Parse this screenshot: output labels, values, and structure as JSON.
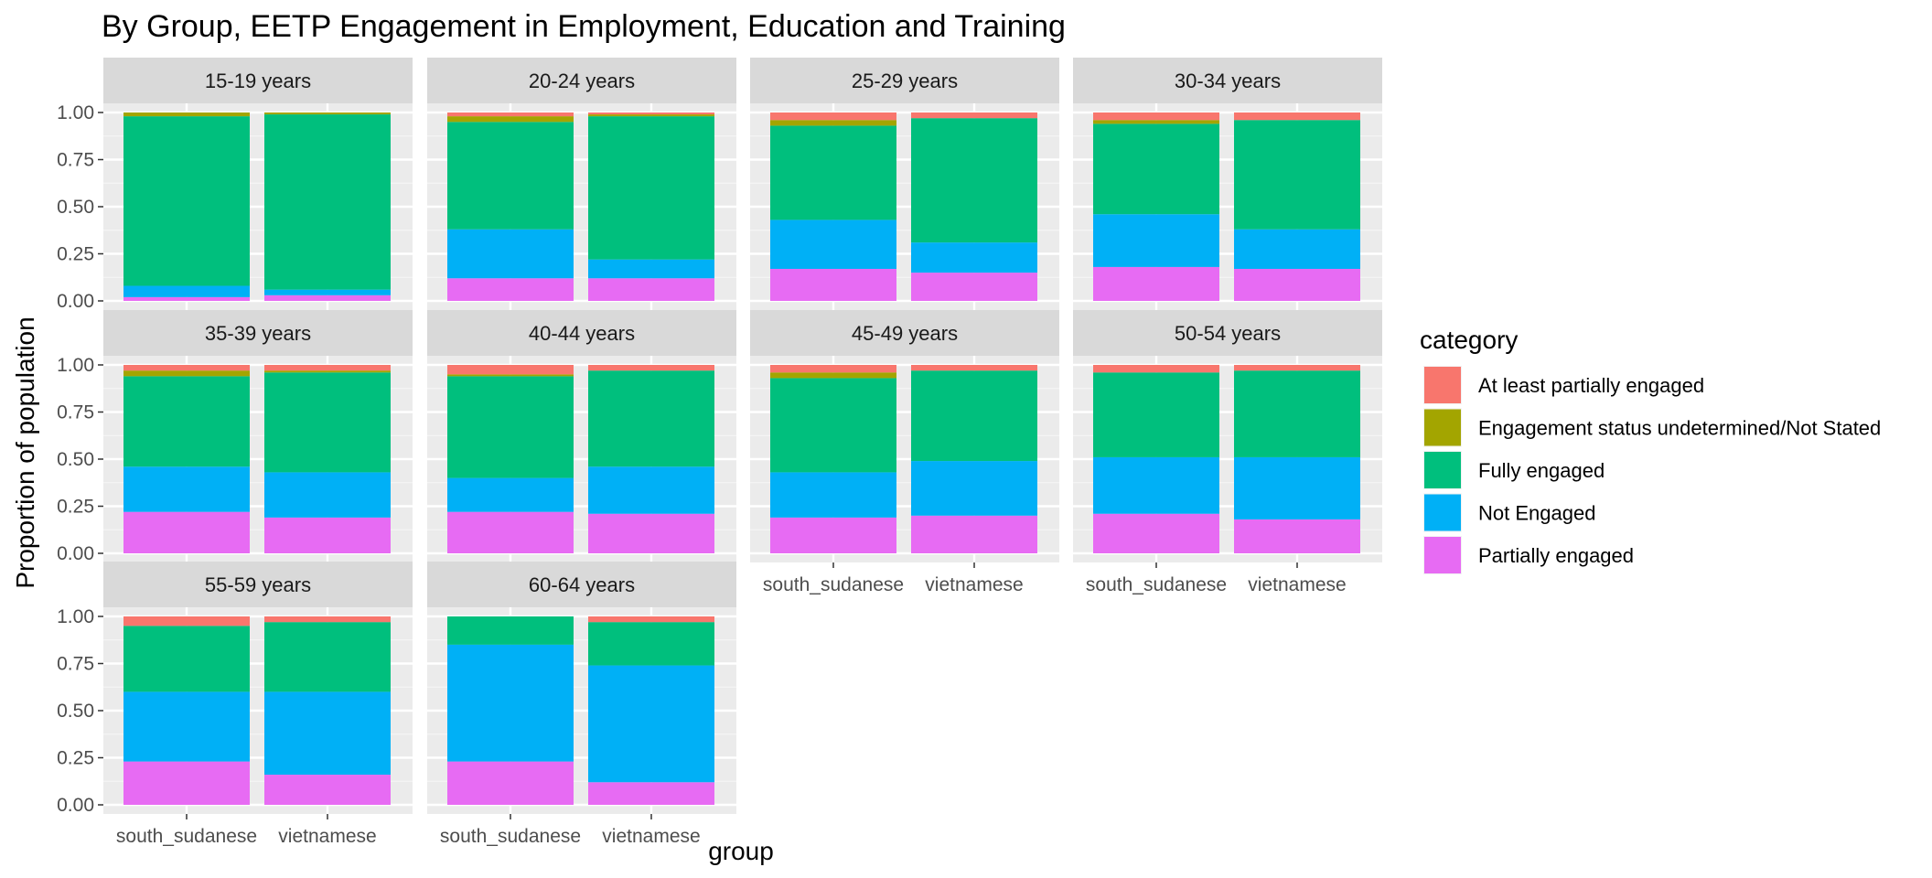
{
  "chart_data": {
    "type": "bar",
    "stacked": true,
    "title": "By Group,  EETP Engagement in Employment, Education and Training",
    "xlabel": "group",
    "ylabel": "Proportion of population",
    "ylim": [
      0,
      1
    ],
    "yticks": [
      "0.00",
      "0.25",
      "0.50",
      "0.75",
      "1.00"
    ],
    "ytick_values": [
      0,
      0.25,
      0.5,
      0.75,
      1.0
    ],
    "groups": [
      "south_sudanese",
      "vietnamese"
    ],
    "legend": {
      "title": "category",
      "placement": "right",
      "entries": [
        {
          "name": "At least partially engaged",
          "color": "#F8766D"
        },
        {
          "name": "Engagement status undetermined/Not Stated",
          "color": "#A3A500"
        },
        {
          "name": "Fully engaged",
          "color": "#00BF7D"
        },
        {
          "name": "Not Engaged",
          "color": "#00B0F6"
        },
        {
          "name": "Partially engaged",
          "color": "#E76BF3"
        }
      ]
    },
    "stack_order_bottom_to_top": [
      "Partially engaged",
      "Not Engaged",
      "Fully engaged",
      "Engagement status undetermined/Not Stated",
      "At least partially engaged"
    ],
    "facets": [
      {
        "label": "15-19 years",
        "bars": [
          {
            "group": "south_sudanese",
            "values": {
              "Partially engaged": 0.02,
              "Not Engaged": 0.06,
              "Fully engaged": 0.9,
              "Engagement status undetermined/Not Stated": 0.02,
              "At least partially engaged": 0.0
            }
          },
          {
            "group": "vietnamese",
            "values": {
              "Partially engaged": 0.03,
              "Not Engaged": 0.03,
              "Fully engaged": 0.93,
              "Engagement status undetermined/Not Stated": 0.01,
              "At least partially engaged": 0.0
            }
          }
        ]
      },
      {
        "label": "20-24 years",
        "bars": [
          {
            "group": "south_sudanese",
            "values": {
              "Partially engaged": 0.12,
              "Not Engaged": 0.26,
              "Fully engaged": 0.57,
              "Engagement status undetermined/Not Stated": 0.03,
              "At least partially engaged": 0.02
            }
          },
          {
            "group": "vietnamese",
            "values": {
              "Partially engaged": 0.12,
              "Not Engaged": 0.1,
              "Fully engaged": 0.76,
              "Engagement status undetermined/Not Stated": 0.01,
              "At least partially engaged": 0.01
            }
          }
        ]
      },
      {
        "label": "25-29 years",
        "bars": [
          {
            "group": "south_sudanese",
            "values": {
              "Partially engaged": 0.17,
              "Not Engaged": 0.26,
              "Fully engaged": 0.5,
              "Engagement status undetermined/Not Stated": 0.03,
              "At least partially engaged": 0.04
            }
          },
          {
            "group": "vietnamese",
            "values": {
              "Partially engaged": 0.15,
              "Not Engaged": 0.16,
              "Fully engaged": 0.66,
              "Engagement status undetermined/Not Stated": 0.0,
              "At least partially engaged": 0.03
            }
          }
        ]
      },
      {
        "label": "30-34 years",
        "bars": [
          {
            "group": "south_sudanese",
            "values": {
              "Partially engaged": 0.18,
              "Not Engaged": 0.28,
              "Fully engaged": 0.48,
              "Engagement status undetermined/Not Stated": 0.02,
              "At least partially engaged": 0.04
            }
          },
          {
            "group": "vietnamese",
            "values": {
              "Partially engaged": 0.17,
              "Not Engaged": 0.21,
              "Fully engaged": 0.58,
              "Engagement status undetermined/Not Stated": 0.0,
              "At least partially engaged": 0.04
            }
          }
        ]
      },
      {
        "label": "35-39 years",
        "bars": [
          {
            "group": "south_sudanese",
            "values": {
              "Partially engaged": 0.22,
              "Not Engaged": 0.24,
              "Fully engaged": 0.48,
              "Engagement status undetermined/Not Stated": 0.03,
              "At least partially engaged": 0.03
            }
          },
          {
            "group": "vietnamese",
            "values": {
              "Partially engaged": 0.19,
              "Not Engaged": 0.24,
              "Fully engaged": 0.53,
              "Engagement status undetermined/Not Stated": 0.01,
              "At least partially engaged": 0.03
            }
          }
        ]
      },
      {
        "label": "40-44 years",
        "bars": [
          {
            "group": "south_sudanese",
            "values": {
              "Partially engaged": 0.22,
              "Not Engaged": 0.18,
              "Fully engaged": 0.54,
              "Engagement status undetermined/Not Stated": 0.01,
              "At least partially engaged": 0.05
            }
          },
          {
            "group": "vietnamese",
            "values": {
              "Partially engaged": 0.21,
              "Not Engaged": 0.25,
              "Fully engaged": 0.51,
              "Engagement status undetermined/Not Stated": 0.0,
              "At least partially engaged": 0.03
            }
          }
        ]
      },
      {
        "label": "45-49 years",
        "bars": [
          {
            "group": "south_sudanese",
            "values": {
              "Partially engaged": 0.19,
              "Not Engaged": 0.24,
              "Fully engaged": 0.5,
              "Engagement status undetermined/Not Stated": 0.03,
              "At least partially engaged": 0.04
            }
          },
          {
            "group": "vietnamese",
            "values": {
              "Partially engaged": 0.2,
              "Not Engaged": 0.29,
              "Fully engaged": 0.48,
              "Engagement status undetermined/Not Stated": 0.0,
              "At least partially engaged": 0.03
            }
          }
        ]
      },
      {
        "label": "50-54 years",
        "bars": [
          {
            "group": "south_sudanese",
            "values": {
              "Partially engaged": 0.21,
              "Not Engaged": 0.3,
              "Fully engaged": 0.45,
              "Engagement status undetermined/Not Stated": 0.0,
              "At least partially engaged": 0.04
            }
          },
          {
            "group": "vietnamese",
            "values": {
              "Partially engaged": 0.18,
              "Not Engaged": 0.33,
              "Fully engaged": 0.46,
              "Engagement status undetermined/Not Stated": 0.0,
              "At least partially engaged": 0.03
            }
          }
        ]
      },
      {
        "label": "55-59 years",
        "bars": [
          {
            "group": "south_sudanese",
            "values": {
              "Partially engaged": 0.23,
              "Not Engaged": 0.37,
              "Fully engaged": 0.35,
              "Engagement status undetermined/Not Stated": 0.0,
              "At least partially engaged": 0.05
            }
          },
          {
            "group": "vietnamese",
            "values": {
              "Partially engaged": 0.16,
              "Not Engaged": 0.44,
              "Fully engaged": 0.37,
              "Engagement status undetermined/Not Stated": 0.0,
              "At least partially engaged": 0.03
            }
          }
        ]
      },
      {
        "label": "60-64 years",
        "bars": [
          {
            "group": "south_sudanese",
            "values": {
              "Partially engaged": 0.23,
              "Not Engaged": 0.62,
              "Fully engaged": 0.15,
              "Engagement status undetermined/Not Stated": 0.0,
              "At least partially engaged": 0.0
            }
          },
          {
            "group": "vietnamese",
            "values": {
              "Partially engaged": 0.12,
              "Not Engaged": 0.62,
              "Fully engaged": 0.23,
              "Engagement status undetermined/Not Stated": 0.0,
              "At least partially engaged": 0.03
            }
          }
        ]
      }
    ]
  }
}
